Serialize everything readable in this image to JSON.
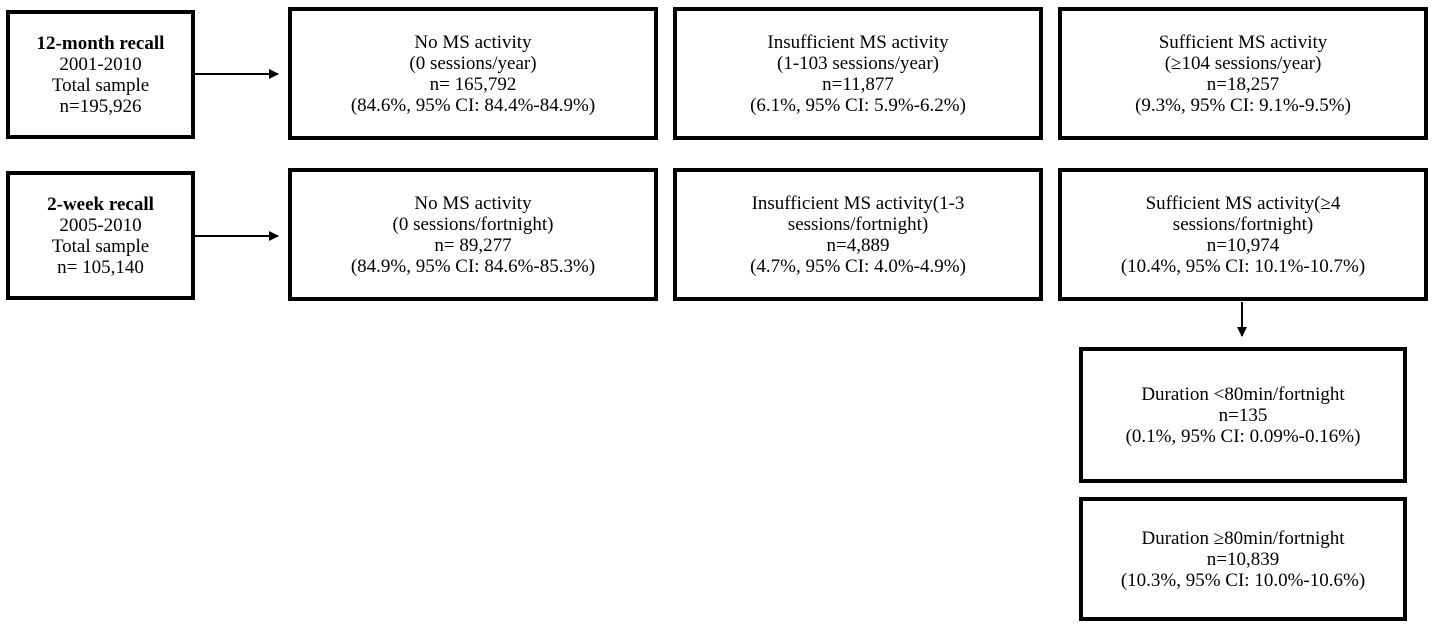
{
  "rows": {
    "twelve_month": {
      "source": {
        "title": "12-month recall",
        "years": "2001-2010",
        "label": "Total sample",
        "n": "n=195,926"
      },
      "boxes": [
        {
          "l1": "No MS activity",
          "l2": "(0 sessions/year)",
          "l3": "n= 165,792",
          "l4": "(84.6%, 95% CI: 84.4%-84.9%)"
        },
        {
          "l1": "Insufficient MS activity",
          "l2": "(1-103 sessions/year)",
          "l3": "n=11,877",
          "l4": "(6.1%, 95% CI: 5.9%-6.2%)"
        },
        {
          "l1": "Sufficient MS activity",
          "l2": "(≥104 sessions/year)",
          "l3": "n=18,257",
          "l4": "(9.3%, 95% CI: 9.1%-9.5%)"
        }
      ]
    },
    "two_week": {
      "source": {
        "title": "2-week recall",
        "years": "2005-2010",
        "label": "Total sample",
        "n": "n= 105,140"
      },
      "boxes": [
        {
          "l1": "No MS activity",
          "l2": "(0 sessions/fortnight)",
          "l3": "n= 89,277",
          "l4": "(84.9%, 95% CI: 84.6%-85.3%)"
        },
        {
          "l1": "Insufficient MS activity(1-3",
          "l2": "sessions/fortnight)",
          "l3": "n=4,889",
          "l4": "(4.7%, 95% CI: 4.0%-4.9%)"
        },
        {
          "l1": "Sufficient MS activity(≥4",
          "l2": "sessions/fortnight)",
          "l3": "n=10,974",
          "l4": "(10.4%, 95% CI: 10.1%-10.7%)"
        }
      ]
    }
  },
  "duration": [
    {
      "l1": "Duration <80min/fortnight",
      "l2": "n=135",
      "l3": "(0.1%, 95% CI: 0.09%-0.16%)"
    },
    {
      "l1": "Duration ≥80min/fortnight",
      "l2": "n=10,839",
      "l3": "(10.3%, 95% CI: 10.0%-10.6%)"
    }
  ]
}
